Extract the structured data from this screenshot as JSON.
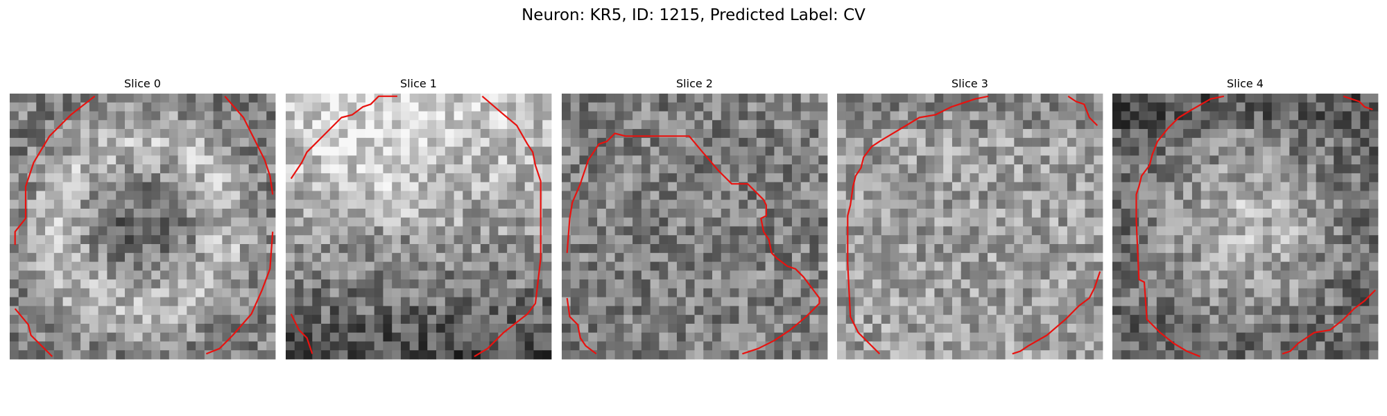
{
  "figure": {
    "title": "Neuron: KR5, ID: 1215, Predicted Label: CV"
  },
  "colors": {
    "contour": "#e8120f",
    "background": "#ffffff",
    "colormap": "grayscale"
  },
  "panels": [
    {
      "title": "Slice 0",
      "seed": 11,
      "pattern": "ring",
      "contours": [
        [
          [
            0.32,
            0.01
          ],
          [
            0.23,
            0.08
          ],
          [
            0.15,
            0.16
          ],
          [
            0.09,
            0.26
          ],
          [
            0.06,
            0.35
          ],
          [
            0.06,
            0.47
          ],
          [
            0.02,
            0.52
          ],
          [
            0.02,
            0.57
          ]
        ],
        [
          [
            0.81,
            0.01
          ],
          [
            0.88,
            0.09
          ],
          [
            0.92,
            0.17
          ],
          [
            0.96,
            0.25
          ],
          [
            0.98,
            0.31
          ],
          [
            0.99,
            0.38
          ]
        ],
        [
          [
            0.99,
            0.52
          ],
          [
            0.98,
            0.66
          ],
          [
            0.95,
            0.74
          ],
          [
            0.91,
            0.83
          ],
          [
            0.84,
            0.91
          ],
          [
            0.79,
            0.96
          ],
          [
            0.74,
            0.98
          ]
        ],
        [
          [
            0.02,
            0.81
          ],
          [
            0.07,
            0.87
          ],
          [
            0.08,
            0.91
          ],
          [
            0.12,
            0.95
          ],
          [
            0.16,
            0.99
          ]
        ]
      ]
    },
    {
      "title": "Slice 1",
      "seed": 23,
      "pattern": "bright-top",
      "contours": [
        [
          [
            0.02,
            0.32
          ],
          [
            0.06,
            0.26
          ],
          [
            0.08,
            0.22
          ],
          [
            0.11,
            0.19
          ],
          [
            0.16,
            0.14
          ],
          [
            0.21,
            0.09
          ],
          [
            0.25,
            0.08
          ],
          [
            0.29,
            0.05
          ],
          [
            0.32,
            0.04
          ],
          [
            0.35,
            0.01
          ],
          [
            0.42,
            0.01
          ]
        ],
        [
          [
            0.74,
            0.01
          ],
          [
            0.81,
            0.07
          ],
          [
            0.87,
            0.12
          ],
          [
            0.91,
            0.19
          ],
          [
            0.93,
            0.22
          ],
          [
            0.94,
            0.27
          ],
          [
            0.96,
            0.33
          ],
          [
            0.96,
            0.49
          ],
          [
            0.96,
            0.62
          ],
          [
            0.94,
            0.79
          ],
          [
            0.91,
            0.83
          ],
          [
            0.82,
            0.9
          ],
          [
            0.76,
            0.96
          ],
          [
            0.71,
            0.99
          ]
        ],
        [
          [
            0.02,
            0.83
          ],
          [
            0.05,
            0.89
          ],
          [
            0.08,
            0.92
          ],
          [
            0.1,
            0.98
          ]
        ]
      ]
    },
    {
      "title": "Slice 2",
      "seed": 37,
      "pattern": "noise",
      "contours": [
        [
          [
            0.02,
            0.6
          ],
          [
            0.03,
            0.47
          ],
          [
            0.04,
            0.41
          ],
          [
            0.07,
            0.34
          ],
          [
            0.08,
            0.31
          ],
          [
            0.09,
            0.28
          ],
          [
            0.1,
            0.25
          ],
          [
            0.12,
            0.22
          ],
          [
            0.14,
            0.19
          ],
          [
            0.17,
            0.18
          ],
          [
            0.2,
            0.15
          ],
          [
            0.24,
            0.16
          ],
          [
            0.33,
            0.16
          ],
          [
            0.48,
            0.16
          ],
          [
            0.53,
            0.22
          ],
          [
            0.59,
            0.29
          ],
          [
            0.64,
            0.34
          ],
          [
            0.7,
            0.34
          ],
          [
            0.73,
            0.37
          ],
          [
            0.76,
            0.4
          ],
          [
            0.77,
            0.42
          ],
          [
            0.77,
            0.46
          ],
          [
            0.75,
            0.47
          ],
          [
            0.76,
            0.52
          ],
          [
            0.78,
            0.55
          ],
          [
            0.79,
            0.6
          ],
          [
            0.81,
            0.62
          ],
          [
            0.85,
            0.65
          ],
          [
            0.88,
            0.66
          ],
          [
            0.91,
            0.69
          ],
          [
            0.94,
            0.73
          ],
          [
            0.97,
            0.77
          ],
          [
            0.97,
            0.79
          ],
          [
            0.92,
            0.84
          ],
          [
            0.86,
            0.89
          ],
          [
            0.8,
            0.93
          ],
          [
            0.74,
            0.96
          ],
          [
            0.68,
            0.98
          ]
        ],
        [
          [
            0.02,
            0.77
          ],
          [
            0.03,
            0.84
          ],
          [
            0.06,
            0.87
          ],
          [
            0.07,
            0.92
          ],
          [
            0.09,
            0.95
          ],
          [
            0.13,
            0.98
          ]
        ]
      ]
    },
    {
      "title": "Slice 3",
      "seed": 53,
      "pattern": "soft",
      "contours": [
        [
          [
            0.57,
            0.01
          ],
          [
            0.52,
            0.02
          ],
          [
            0.43,
            0.05
          ],
          [
            0.37,
            0.08
          ],
          [
            0.31,
            0.09
          ],
          [
            0.26,
            0.12
          ],
          [
            0.21,
            0.15
          ],
          [
            0.16,
            0.18
          ],
          [
            0.13,
            0.2
          ],
          [
            0.1,
            0.24
          ],
          [
            0.09,
            0.28
          ],
          [
            0.07,
            0.31
          ],
          [
            0.06,
            0.35
          ],
          [
            0.05,
            0.42
          ],
          [
            0.04,
            0.46
          ],
          [
            0.04,
            0.64
          ],
          [
            0.05,
            0.84
          ],
          [
            0.08,
            0.9
          ],
          [
            0.12,
            0.94
          ],
          [
            0.16,
            0.98
          ]
        ],
        [
          [
            0.87,
            0.01
          ],
          [
            0.9,
            0.03
          ],
          [
            0.93,
            0.04
          ],
          [
            0.95,
            0.09
          ],
          [
            0.98,
            0.12
          ]
        ],
        [
          [
            0.99,
            0.67
          ],
          [
            0.97,
            0.73
          ],
          [
            0.95,
            0.77
          ],
          [
            0.91,
            0.8
          ],
          [
            0.86,
            0.85
          ],
          [
            0.79,
            0.91
          ],
          [
            0.72,
            0.95
          ],
          [
            0.69,
            0.97
          ],
          [
            0.66,
            0.98
          ]
        ]
      ]
    },
    {
      "title": "Slice 4",
      "seed": 71,
      "pattern": "bright-center",
      "contours": [
        [
          [
            0.42,
            0.01
          ],
          [
            0.37,
            0.02
          ],
          [
            0.3,
            0.06
          ],
          [
            0.25,
            0.09
          ],
          [
            0.21,
            0.13
          ],
          [
            0.17,
            0.18
          ],
          [
            0.15,
            0.23
          ],
          [
            0.14,
            0.27
          ],
          [
            0.11,
            0.31
          ],
          [
            0.1,
            0.35
          ],
          [
            0.09,
            0.38
          ],
          [
            0.09,
            0.48
          ],
          [
            0.1,
            0.7
          ],
          [
            0.12,
            0.71
          ],
          [
            0.13,
            0.85
          ],
          [
            0.18,
            0.9
          ],
          [
            0.23,
            0.94
          ],
          [
            0.28,
            0.97
          ],
          [
            0.33,
            0.99
          ]
        ],
        [
          [
            0.87,
            0.01
          ],
          [
            0.9,
            0.02
          ],
          [
            0.93,
            0.03
          ],
          [
            0.95,
            0.05
          ],
          [
            0.98,
            0.06
          ]
        ],
        [
          [
            0.99,
            0.74
          ],
          [
            0.95,
            0.78
          ],
          [
            0.91,
            0.81
          ],
          [
            0.87,
            0.85
          ],
          [
            0.82,
            0.89
          ],
          [
            0.76,
            0.9
          ],
          [
            0.73,
            0.92
          ],
          [
            0.7,
            0.94
          ],
          [
            0.67,
            0.97
          ],
          [
            0.64,
            0.98
          ]
        ]
      ]
    }
  ]
}
